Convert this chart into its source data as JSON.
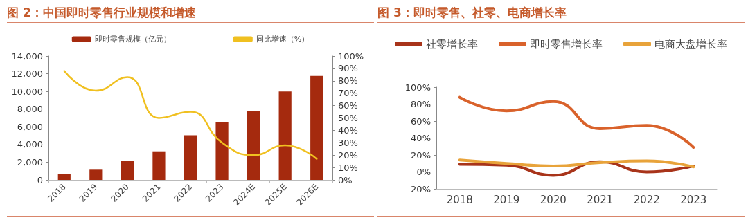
{
  "chart_data": [
    {
      "type": "bar",
      "title": "图 2：中国即时零售行业规模和增速",
      "categories": [
        "2018",
        "2019",
        "2020",
        "2021",
        "2022",
        "2023",
        "2024E",
        "2025E",
        "2026E"
      ],
      "series": [
        {
          "name": "即时零售规模（亿元）",
          "color": "#a52a0e",
          "values": [
            650,
            1150,
            2150,
            3230,
            5050,
            6500,
            7800,
            10000,
            11750
          ]
        },
        {
          "name": "同比增速（%）",
          "type": "line",
          "axis": "y2",
          "color": "#f0c020",
          "values": [
            88,
            72,
            83,
            50,
            55,
            30,
            20,
            28,
            17
          ]
        }
      ],
      "ylim": [
        0,
        14000
      ],
      "yticks": [
        0,
        {
          "value": 2000,
          "label": "2,000"
        },
        {
          "value": 4000,
          "label": "4,000"
        },
        {
          "value": 6000,
          "label": "6,000"
        },
        {
          "value": 8000,
          "label": "8,000"
        },
        {
          "value": 10000,
          "label": "10,000"
        },
        {
          "value": 12000,
          "label": "12,000"
        },
        {
          "value": 14000,
          "label": "14,000"
        }
      ],
      "y2lim": [
        0,
        100
      ],
      "y2ticks": [
        {
          "value": 0,
          "label": "0%"
        },
        {
          "value": 10,
          "label": "10%"
        },
        {
          "value": 20,
          "label": "20%"
        },
        {
          "value": 30,
          "label": "30%"
        },
        {
          "value": 40,
          "label": "40%"
        },
        {
          "value": 50,
          "label": "50%"
        },
        {
          "value": 60,
          "label": "60%"
        },
        {
          "value": 70,
          "label": "70%"
        },
        {
          "value": 80,
          "label": "80%"
        },
        {
          "value": 90,
          "label": "90%"
        },
        {
          "value": 100,
          "label": "100%"
        }
      ],
      "grid": false,
      "legend": "top",
      "marker": "none"
    },
    {
      "type": "line",
      "title": "图 3：即时零售、社零、电商增长率",
      "categories": [
        "2018",
        "2019",
        "2020",
        "2021",
        "2022",
        "2023"
      ],
      "series": [
        {
          "name": "社零增长率",
          "color": "#a8341a",
          "values": [
            9,
            8,
            -4,
            12,
            0,
            7
          ]
        },
        {
          "name": "即时零售增长率",
          "color": "#d9622b",
          "values": [
            88,
            72,
            83,
            51,
            55,
            29
          ]
        },
        {
          "name": "电商大盘增长率",
          "color": "#e8a33a",
          "values": [
            14,
            10,
            7,
            11,
            13,
            6
          ]
        }
      ],
      "ylim": [
        -20,
        100
      ],
      "yticks": [
        {
          "value": -20,
          "label": "-20%"
        },
        {
          "value": 0,
          "label": "0%"
        },
        {
          "value": 20,
          "label": "20%"
        },
        {
          "value": 40,
          "label": "40%"
        },
        {
          "value": 60,
          "label": "60%"
        },
        {
          "value": 80,
          "label": "80%"
        },
        {
          "value": 100,
          "label": "100%"
        }
      ],
      "grid": false,
      "legend": "top",
      "marker": "none"
    }
  ]
}
